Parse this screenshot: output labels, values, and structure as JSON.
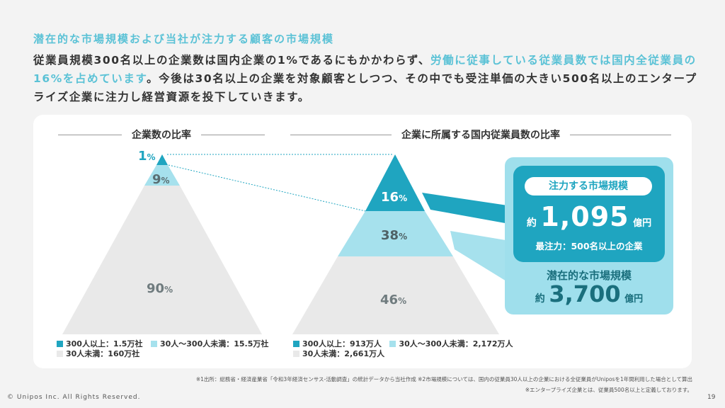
{
  "subtitle": "潜在的な市場規模および当社が注力する顧客の市場規模",
  "lead": {
    "p1": "従業員規模300名以上の企業数は国内企業の1%であるにもかかわらず、",
    "p2": "労働に従事している従業員数では国内全従業員の16%を占めています",
    "p3": "。今後は30名以上の企業を対象顧客としつつ、その中でも受注単価の大きい500名以上のエンタープライズ企業に注力し経営資源を投下していきます。"
  },
  "left": {
    "title": "企業数の比率",
    "segments": [
      {
        "pct": "1",
        "unit": "%"
      },
      {
        "pct": "9",
        "unit": "%"
      },
      {
        "pct": "90",
        "unit": "%"
      }
    ],
    "legend": [
      "300人以上：1.5万社",
      "30人〜300人未満：15.5万社",
      "30人未満：160万社"
    ]
  },
  "right": {
    "title": "企業に所属する国内従業員数の比率",
    "segments": [
      {
        "pct": "16",
        "unit": "%"
      },
      {
        "pct": "38",
        "unit": "%"
      },
      {
        "pct": "46",
        "unit": "%"
      }
    ],
    "legend": [
      "300人以上：913万人",
      "30人〜300人未満：2,172万人",
      "30人未満：2,661万人"
    ]
  },
  "colors": {
    "dark": "#1fa5c0",
    "light": "#a6e1ed",
    "gray": "#e9e9e9"
  },
  "focus": {
    "label": "注力する市場規模",
    "prefix": "約",
    "value": "1,095",
    "unit": "億円",
    "note": "最注力：500名以上の企業"
  },
  "potential": {
    "label": "潜在的な市場規模",
    "prefix": "約",
    "value": "3,700",
    "unit": "億円"
  },
  "footnotes": {
    "n1": "※1出所：総務省・経済産業省「令和3年経済センサス-活動調査」の統計データから当社作成 ※2市場規模については、国内の従業員30人以上の企業における全従業員がUniposを1年間利用した場合として算出",
    "n2": "※エンタープライズ企業とは、従業員500名以上と定義しております。"
  },
  "copyright": "© Unipos Inc. All Rights Reserved.",
  "page": "19"
}
